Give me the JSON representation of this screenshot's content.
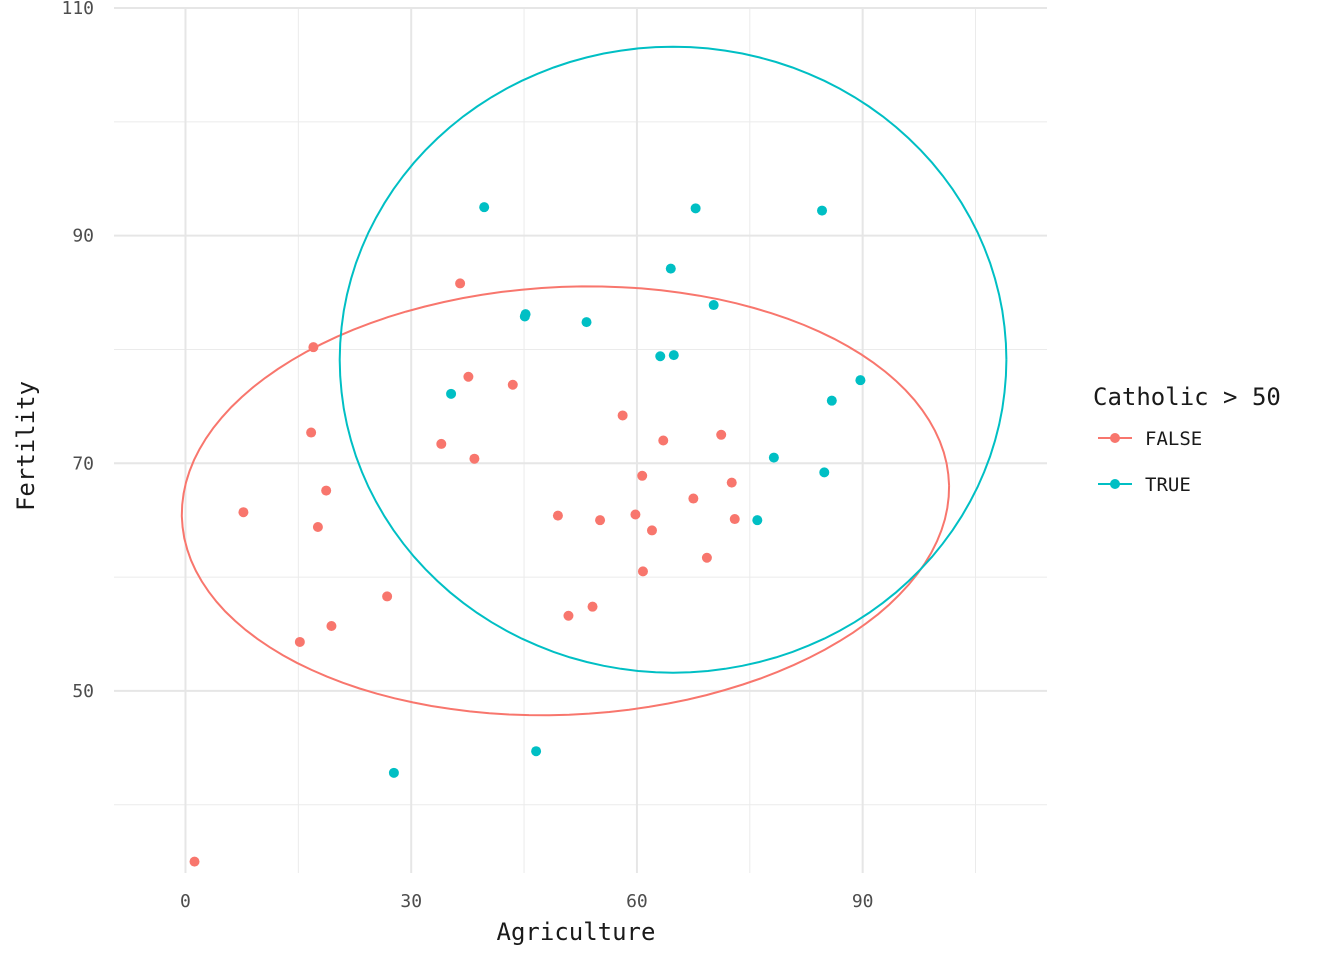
{
  "chart_data": {
    "type": "scatter",
    "title": "",
    "xlabel": "Agriculture",
    "ylabel": "Fertility",
    "xlim": [
      -9.5,
      114.5
    ],
    "ylim": [
      34.0,
      110.0
    ],
    "x_ticks": [
      0,
      30,
      60,
      90
    ],
    "y_ticks": [
      50,
      70,
      90,
      110
    ],
    "grid": true,
    "legend": {
      "title": "Catholic > 50",
      "position": "right"
    },
    "series": [
      {
        "name": "FALSE",
        "color": "#F8766D",
        "points": [
          {
            "x": 1.2,
            "y": 35.0
          },
          {
            "x": 7.7,
            "y": 65.7
          },
          {
            "x": 15.2,
            "y": 54.3
          },
          {
            "x": 16.7,
            "y": 72.7
          },
          {
            "x": 17.0,
            "y": 80.2
          },
          {
            "x": 17.6,
            "y": 64.4
          },
          {
            "x": 18.7,
            "y": 67.6
          },
          {
            "x": 19.4,
            "y": 55.7
          },
          {
            "x": 26.8,
            "y": 58.3
          },
          {
            "x": 34.0,
            "y": 71.7
          },
          {
            "x": 36.5,
            "y": 85.8
          },
          {
            "x": 37.6,
            "y": 77.6
          },
          {
            "x": 38.4,
            "y": 70.4
          },
          {
            "x": 43.5,
            "y": 76.9
          },
          {
            "x": 49.5,
            "y": 65.4
          },
          {
            "x": 50.9,
            "y": 56.6
          },
          {
            "x": 54.1,
            "y": 57.4
          },
          {
            "x": 55.1,
            "y": 65.0
          },
          {
            "x": 58.1,
            "y": 74.2
          },
          {
            "x": 59.8,
            "y": 65.5
          },
          {
            "x": 60.7,
            "y": 68.9
          },
          {
            "x": 60.8,
            "y": 60.5
          },
          {
            "x": 62.0,
            "y": 64.1
          },
          {
            "x": 63.5,
            "y": 72.0
          },
          {
            "x": 67.5,
            "y": 66.9
          },
          {
            "x": 69.3,
            "y": 61.7
          },
          {
            "x": 71.2,
            "y": 72.5
          },
          {
            "x": 72.6,
            "y": 68.3
          },
          {
            "x": 73.0,
            "y": 65.1
          }
        ],
        "ellipse": {
          "center": [
            50.5,
            66.7
          ],
          "semi_axes": [
            51.0,
            18.8
          ],
          "angle_deg": 1.5
        }
      },
      {
        "name": "TRUE",
        "color": "#00BFC4",
        "points": [
          {
            "x": 27.7,
            "y": 42.8
          },
          {
            "x": 35.3,
            "y": 76.1
          },
          {
            "x": 39.7,
            "y": 92.5
          },
          {
            "x": 45.1,
            "y": 82.9
          },
          {
            "x": 45.2,
            "y": 83.1
          },
          {
            "x": 46.6,
            "y": 44.7
          },
          {
            "x": 53.3,
            "y": 82.4
          },
          {
            "x": 63.1,
            "y": 79.4
          },
          {
            "x": 64.5,
            "y": 87.1
          },
          {
            "x": 64.9,
            "y": 79.5
          },
          {
            "x": 67.8,
            "y": 92.4
          },
          {
            "x": 70.2,
            "y": 83.9
          },
          {
            "x": 76.0,
            "y": 65.0
          },
          {
            "x": 78.2,
            "y": 70.5
          },
          {
            "x": 84.6,
            "y": 92.2
          },
          {
            "x": 84.9,
            "y": 69.2
          },
          {
            "x": 85.9,
            "y": 75.5
          },
          {
            "x": 89.7,
            "y": 77.3
          }
        ],
        "ellipse": {
          "center": [
            64.8,
            79.1
          ],
          "semi_axes": [
            44.3,
            27.5
          ],
          "angle_deg": 0
        }
      }
    ]
  }
}
